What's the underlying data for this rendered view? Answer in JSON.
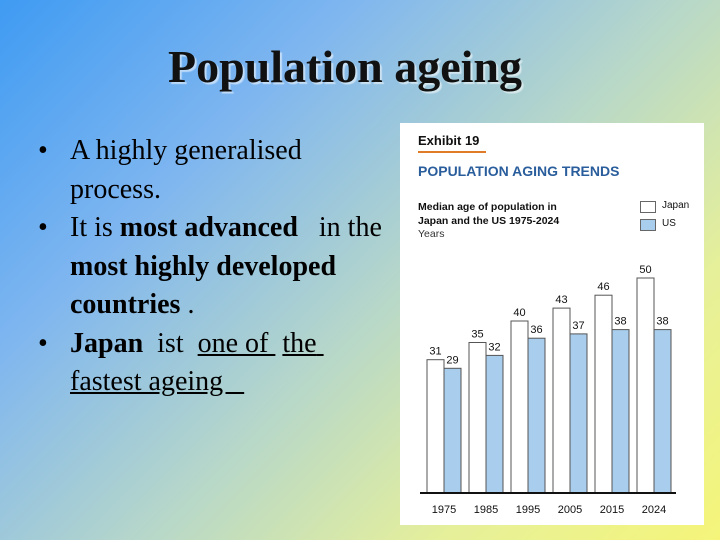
{
  "slide": {
    "title": "Population ageing",
    "bullets": [
      {
        "segments": [
          {
            "text": "A highly generalised process."
          }
        ]
      },
      {
        "segments": [
          {
            "text": "It is "
          },
          {
            "text": "most advanced",
            "bold": true
          },
          {
            "text": "   in the "
          },
          {
            "text": "most highly developed countries",
            "bold": true
          },
          {
            "text": " ."
          }
        ]
      },
      {
        "segments": [
          {
            "text": "Japan",
            "bold": true
          },
          {
            "text": "  ist  "
          },
          {
            "text": "one of ",
            "underline": true
          },
          {
            "text": " "
          },
          {
            "text": "the fastest ageing   ",
            "underline": true
          }
        ]
      }
    ]
  },
  "exhibit": {
    "label": "Exhibit 19",
    "heading": "POPULATION AGING TRENDS",
    "subtitle": "Median age of population in Japan and the US 1975-2024",
    "unit": "Years"
  },
  "colors": {
    "japan_fill": "#ffffff",
    "us_fill": "#a9cdec",
    "bar_stroke": "#555555",
    "accent_orange": "#e07b27",
    "heading_blue": "#2a5d9c"
  },
  "chart_data": {
    "type": "bar",
    "categories": [
      "1975",
      "1985",
      "1995",
      "2005",
      "2015",
      "2024"
    ],
    "series": [
      {
        "name": "Japan",
        "values": [
          31,
          35,
          40,
          43,
          46,
          50
        ]
      },
      {
        "name": "US",
        "values": [
          29,
          32,
          36,
          37,
          38,
          38
        ]
      }
    ],
    "title": "POPULATION AGING TRENDS",
    "ylabel": "Years",
    "ylim": [
      0,
      50
    ],
    "legend": "top-right",
    "grid": false
  }
}
